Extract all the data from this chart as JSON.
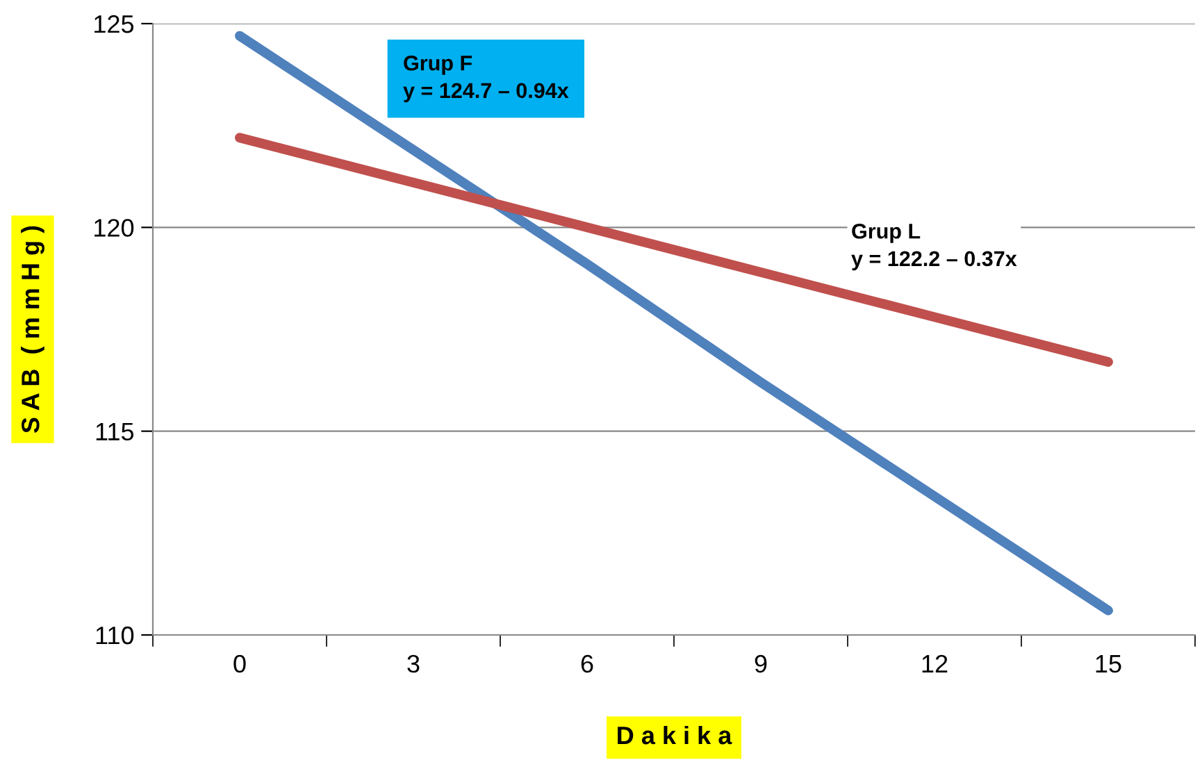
{
  "chart_data": {
    "type": "line",
    "xlabel": "D a k i k a",
    "ylabel": "S A B  ( m m H g )",
    "categories": [
      "0",
      "3",
      "6",
      "9",
      "12",
      "15"
    ],
    "series": [
      {
        "color": "#4f81bd",
        "values": [
          124.7,
          121.9,
          119.1,
          116.2,
          113.4,
          110.6
        ]
      },
      {
        "color": "#c0504d",
        "values": [
          122.2,
          121.1,
          120.0,
          118.9,
          117.8,
          116.7
        ]
      }
    ],
    "ylim": [
      110,
      125
    ],
    "yticks": [
      110,
      115,
      120,
      125
    ],
    "grid": "y",
    "legend": false,
    "marker": "none",
    "line_style": "solid",
    "annotations": [
      "Grup F\ny = 124.7 – 0.94x",
      "Grup L\ny = 122.2 – 0.37x"
    ]
  }
}
